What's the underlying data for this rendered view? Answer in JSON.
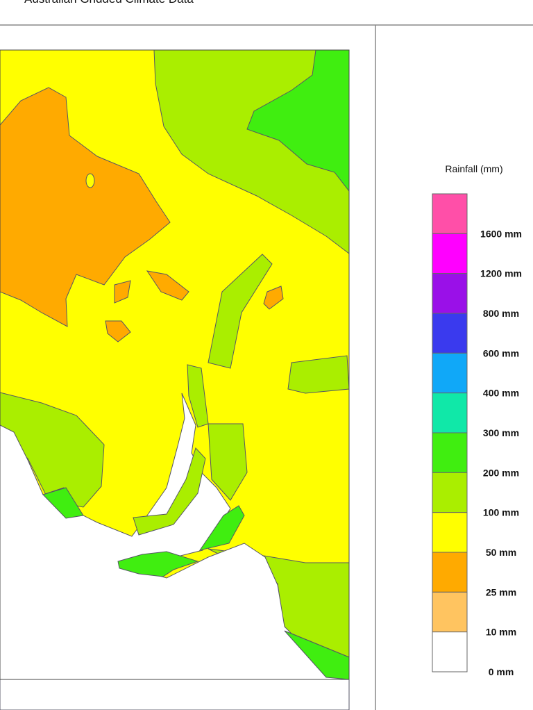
{
  "header": {
    "title": "Australian Gridded Climate Data"
  },
  "legend": {
    "title": "Rainfall (mm)",
    "items": [
      {
        "color": "#ff4fa8",
        "label": "1600 mm"
      },
      {
        "color": "#ff00ff",
        "label": "1200 mm"
      },
      {
        "color": "#9a10e8",
        "label": "800 mm"
      },
      {
        "color": "#3a3aee",
        "label": "600 mm"
      },
      {
        "color": "#10a8f8",
        "label": "400 mm"
      },
      {
        "color": "#10e8a8",
        "label": "300 mm"
      },
      {
        "color": "#40ee10",
        "label": "200 mm"
      },
      {
        "color": "#aaee00",
        "label": "100 mm"
      },
      {
        "color": "#ffff00",
        "label": "50 mm"
      },
      {
        "color": "#ffaa00",
        "label": "25 mm"
      },
      {
        "color": "#ffc460",
        "label": "10 mm"
      },
      {
        "color": "#ffffff",
        "label": "0 mm"
      }
    ]
  }
}
